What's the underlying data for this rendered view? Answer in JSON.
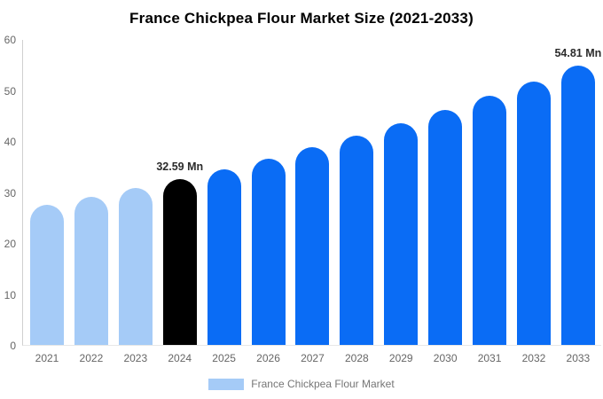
{
  "title": "France Chickpea Flour Market Size (2021-2033)",
  "chart_data": {
    "type": "bar",
    "title": "France Chickpea Flour Market Size (2021-2033)",
    "categories": [
      "2021",
      "2022",
      "2023",
      "2024",
      "2025",
      "2026",
      "2027",
      "2028",
      "2029",
      "2030",
      "2031",
      "2032",
      "2033"
    ],
    "values": [
      27.4,
      29.03,
      30.76,
      32.59,
      34.53,
      36.58,
      38.76,
      41.07,
      43.51,
      46.1,
      48.85,
      51.73,
      54.81
    ],
    "unit": "Mn",
    "xlabel": "",
    "ylabel": "",
    "ylim": [
      0,
      60
    ],
    "yticks": [
      0,
      10,
      20,
      30,
      40,
      50,
      60
    ],
    "grid": false,
    "data_labels": [
      {
        "category": "2024",
        "text": "32.59 Mn"
      },
      {
        "category": "2033",
        "text": "54.81 Mn"
      }
    ],
    "color_roles": [
      "historical",
      "historical",
      "historical",
      "base_year",
      "forecast",
      "forecast",
      "forecast",
      "forecast",
      "forecast",
      "forecast",
      "forecast",
      "forecast",
      "forecast"
    ],
    "colors": {
      "historical": "#a5cbf7",
      "base_year": "#000000",
      "forecast": "#0a6cf5"
    },
    "axis_text_color": "#666666",
    "axis_line_color": "#cfcfcf",
    "legend": {
      "label": "France Chickpea Flour Market",
      "position": "bottom",
      "swatch_color": "#a5cbf7"
    }
  }
}
